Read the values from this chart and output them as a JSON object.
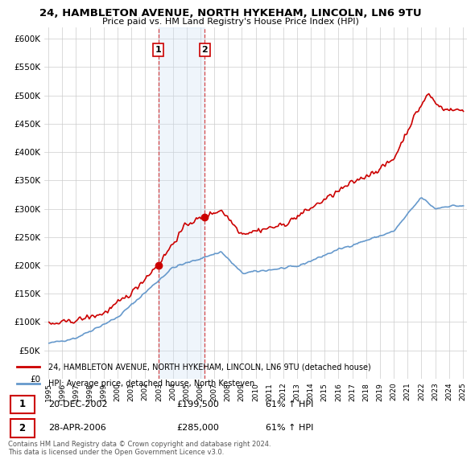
{
  "title": "24, HAMBLETON AVENUE, NORTH HYKEHAM, LINCOLN, LN6 9TU",
  "subtitle": "Price paid vs. HM Land Registry's House Price Index (HPI)",
  "legend_label_red": "24, HAMBLETON AVENUE, NORTH HYKEHAM, LINCOLN, LN6 9TU (detached house)",
  "legend_label_blue": "HPI: Average price, detached house, North Kesteven",
  "transaction_1_label": "1",
  "transaction_1_date": "20-DEC-2002",
  "transaction_1_price": "£199,500",
  "transaction_1_hpi": "61% ↑ HPI",
  "transaction_2_label": "2",
  "transaction_2_date": "28-APR-2006",
  "transaction_2_price": "£285,000",
  "transaction_2_hpi": "61% ↑ HPI",
  "footnote": "Contains HM Land Registry data © Crown copyright and database right 2024.\nThis data is licensed under the Open Government Licence v3.0.",
  "ylim": [
    0,
    620000
  ],
  "yticks": [
    0,
    50000,
    100000,
    150000,
    200000,
    250000,
    300000,
    350000,
    400000,
    450000,
    500000,
    550000,
    600000
  ],
  "ytick_labels": [
    "£0",
    "£50K",
    "£100K",
    "£150K",
    "£200K",
    "£250K",
    "£300K",
    "£350K",
    "£400K",
    "£450K",
    "£500K",
    "£550K",
    "£600K"
  ],
  "background_color": "#ffffff",
  "plot_bg_color": "#ffffff",
  "grid_color": "#cccccc",
  "red_color": "#cc0000",
  "blue_color": "#6699cc",
  "highlight_color": "#ddeeff",
  "transaction1_x": 2002.96,
  "transaction2_x": 2006.32,
  "transaction1_y": 199500,
  "transaction2_y": 285000,
  "xlim_left": 1994.7,
  "xlim_right": 2025.3
}
